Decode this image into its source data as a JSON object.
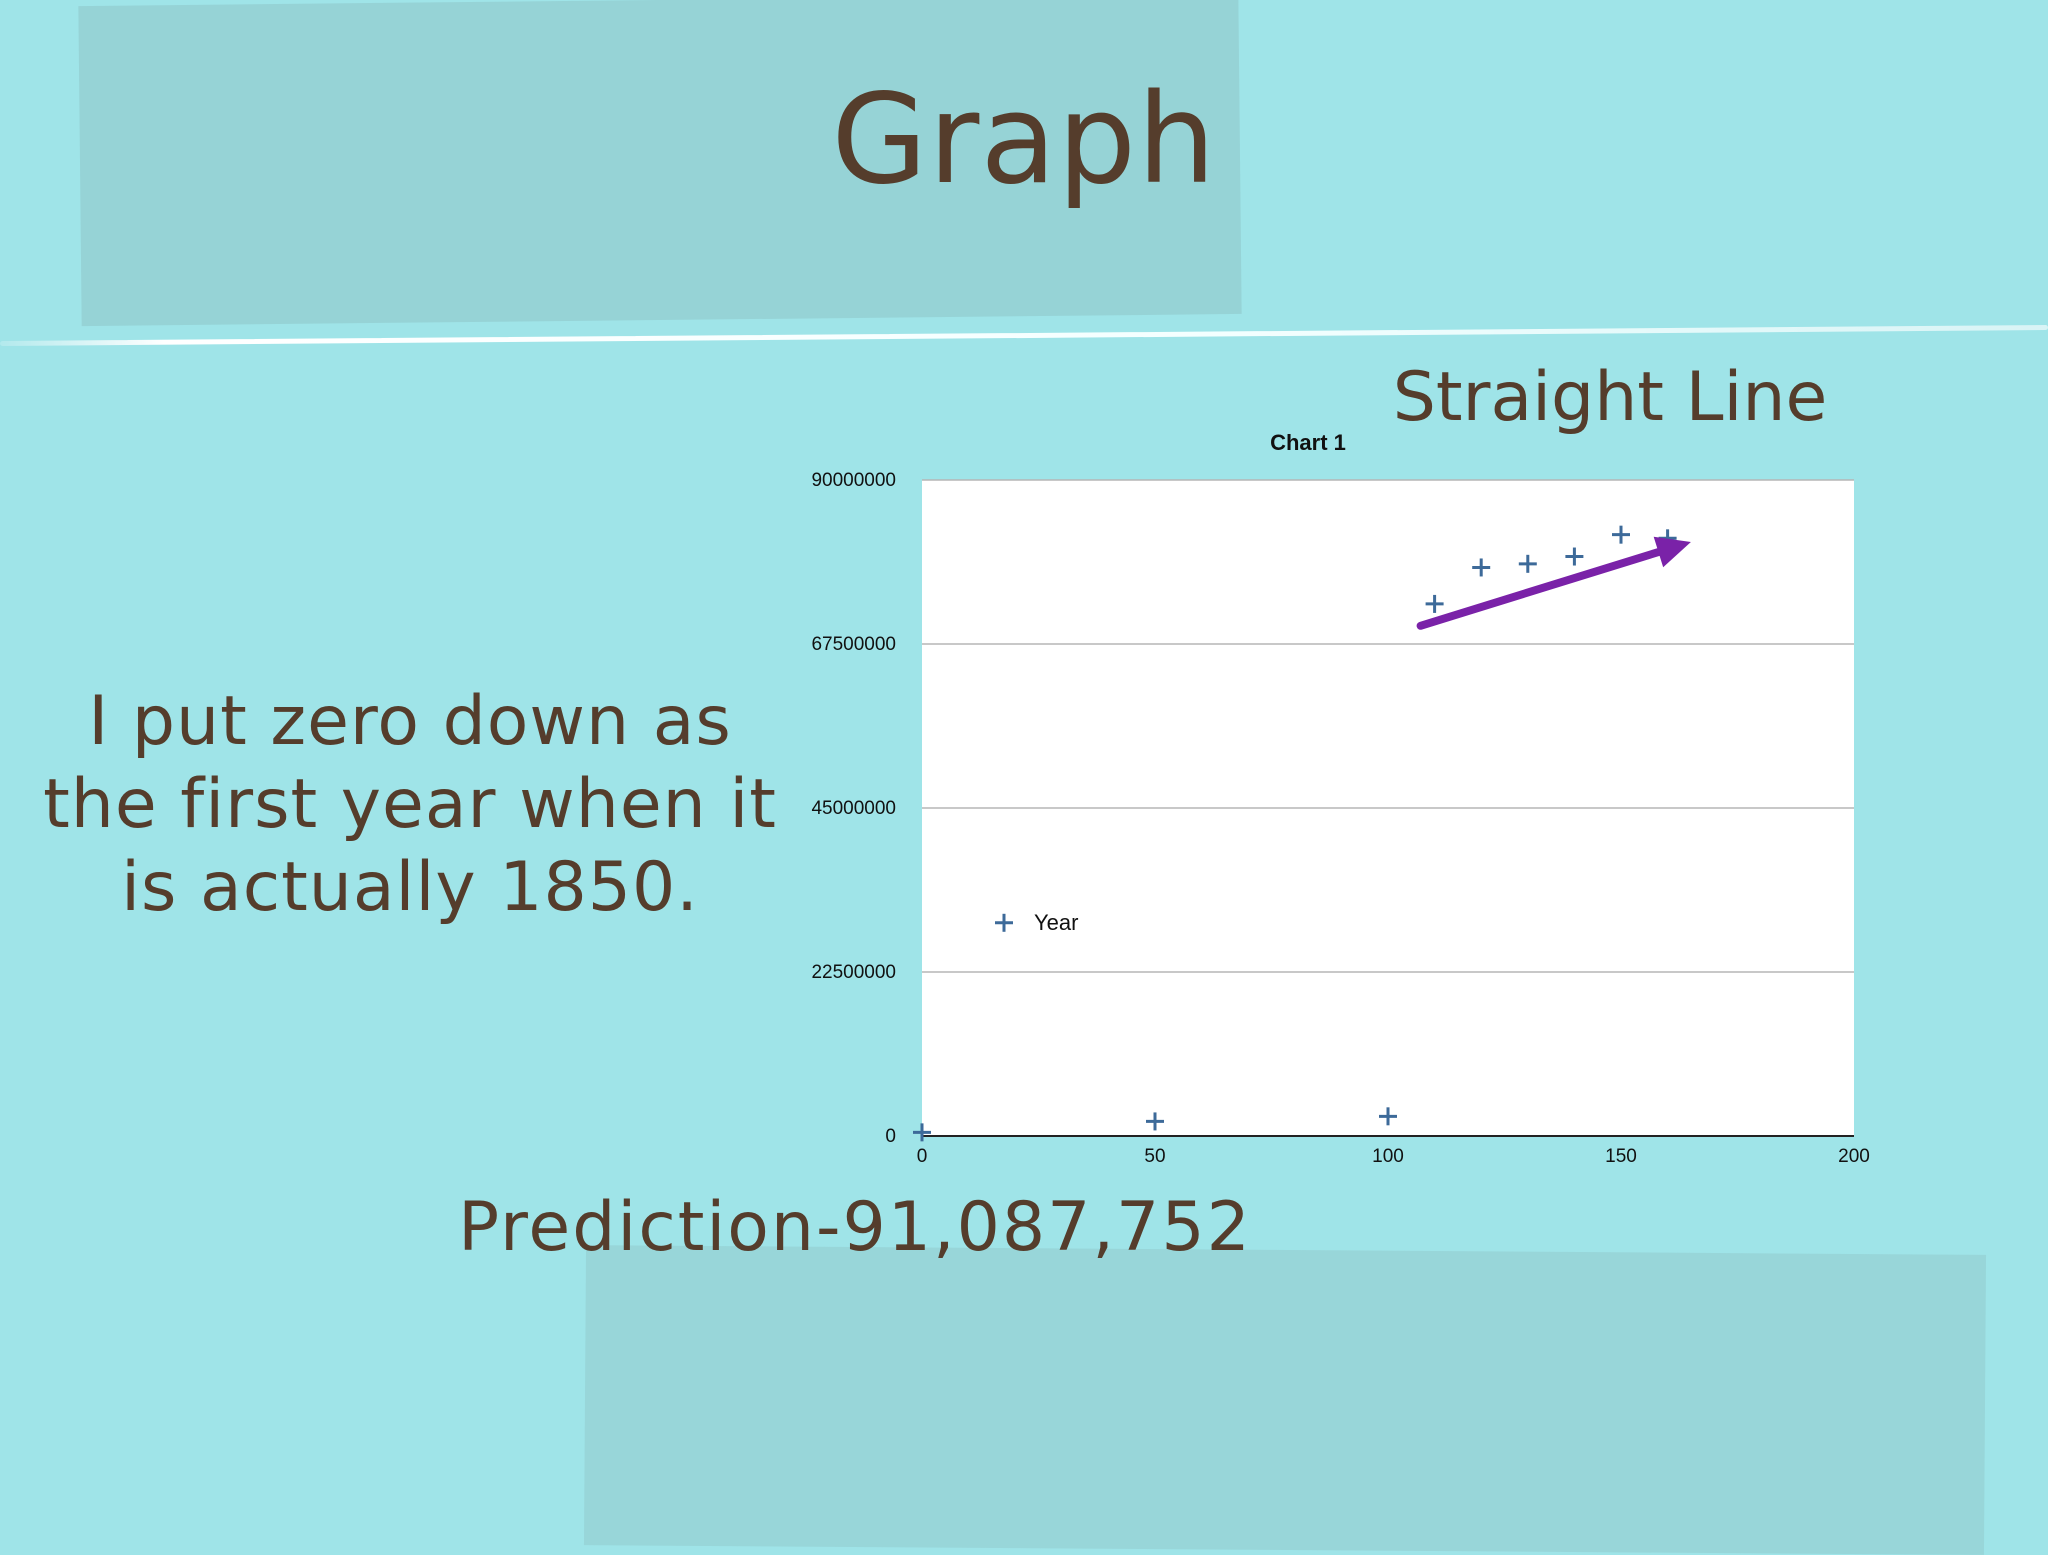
{
  "slide": {
    "title": "Graph",
    "subtitle": "Straight Line",
    "note": "I put zero down as\nthe first year when it\nis actually  1850.",
    "prediction": "Prediction-91,087,752"
  },
  "colors": {
    "background": "#9fe4e8",
    "text": "#553d2c",
    "marker": "#3d6a99",
    "arrow": "#7a22a8"
  },
  "chart_data": {
    "type": "scatter",
    "title": "Chart 1",
    "xlabel": "",
    "ylabel": "",
    "xlim": [
      0,
      200
    ],
    "ylim": [
      0,
      90000000
    ],
    "x_ticks": [
      0,
      50,
      100,
      150,
      200
    ],
    "y_ticks": [
      0,
      22500000,
      45000000,
      67500000,
      90000000
    ],
    "grid": true,
    "legend_position": "left-middle",
    "series": [
      {
        "name": "Year",
        "marker": "+",
        "points": [
          {
            "x": 0,
            "y": 500000
          },
          {
            "x": 50,
            "y": 2000000
          },
          {
            "x": 100,
            "y": 2700000
          },
          {
            "x": 110,
            "y": 73000000
          },
          {
            "x": 120,
            "y": 78000000
          },
          {
            "x": 130,
            "y": 78500000
          },
          {
            "x": 140,
            "y": 79500000
          },
          {
            "x": 150,
            "y": 82500000
          },
          {
            "x": 160,
            "y": 82000000
          }
        ]
      }
    ],
    "annotation": {
      "type": "arrow",
      "from": {
        "x": 107,
        "y": 70000000
      },
      "to": {
        "x": 165,
        "y": 81500000
      }
    }
  }
}
